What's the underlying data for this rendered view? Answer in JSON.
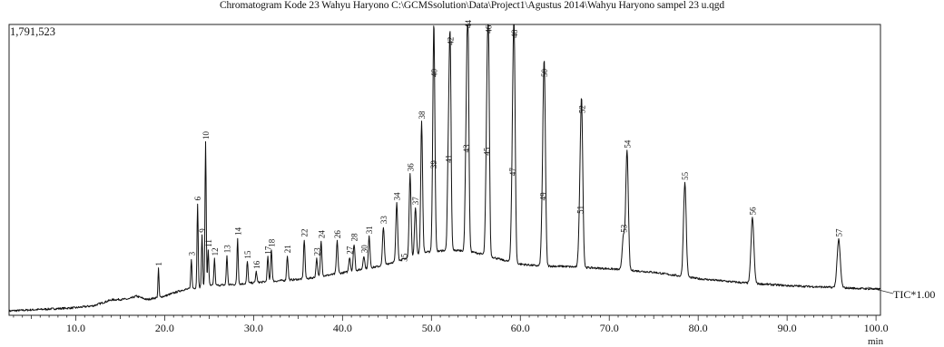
{
  "header": {
    "title": "Chromatogram Kode 23 Wahyu Haryono C:\\GCMSsolution\\Data\\Project1\\Agustus 2014\\Wahyu Haryono sampel 23 u.qgd"
  },
  "chart_data": {
    "type": "line",
    "title": "Chromatogram Kode 23 Wahyu Haryono C:\\GCMSsolution\\Data\\Project1\\Agustus 2014\\Wahyu Haryono sampel 23 u.qgd",
    "y_max_label": "1,791,523",
    "x_unit": "min",
    "trace_label": "TIC*1.00",
    "xlim": [
      2.5,
      100.5
    ],
    "ylim": [
      0,
      1791523
    ],
    "grid": false,
    "x_ticks": [
      {
        "value": 10.0,
        "label": "10.0"
      },
      {
        "value": 20.0,
        "label": "20.0"
      },
      {
        "value": 30.0,
        "label": "30.0"
      },
      {
        "value": 40.0,
        "label": "40.0"
      },
      {
        "value": 50.0,
        "label": "50.0"
      },
      {
        "value": 60.0,
        "label": "60.0"
      },
      {
        "value": 70.0,
        "label": "70.0"
      },
      {
        "value": 80.0,
        "label": "80.0"
      },
      {
        "value": 90.0,
        "label": "90.0"
      },
      {
        "value": 100.0,
        "label": "100.0"
      }
    ],
    "baseline": [
      [
        2.5,
        1.5
      ],
      [
        10,
        2.6
      ],
      [
        12,
        3.3
      ],
      [
        14,
        5.3
      ],
      [
        16,
        5.6
      ],
      [
        16.8,
        6.6
      ],
      [
        18,
        5.4
      ],
      [
        20,
        6.6
      ],
      [
        22,
        8.7
      ],
      [
        25,
        10.2
      ],
      [
        28,
        10.6
      ],
      [
        30,
        11.2
      ],
      [
        33,
        11.9
      ],
      [
        36,
        12.6
      ],
      [
        40,
        14.6
      ],
      [
        44,
        16.8
      ],
      [
        47,
        19.4
      ],
      [
        49,
        21.6
      ],
      [
        52,
        22.4
      ],
      [
        54,
        22.2
      ],
      [
        56,
        20.8
      ],
      [
        58,
        19.0
      ],
      [
        60,
        17.6
      ],
      [
        62,
        17.0
      ],
      [
        65,
        16.8
      ],
      [
        70,
        16.0
      ],
      [
        75,
        14.8
      ],
      [
        80,
        12.6
      ],
      [
        85,
        11.2
      ],
      [
        90,
        10.2
      ],
      [
        95,
        9.6
      ],
      [
        100,
        9.0
      ]
    ],
    "peaks": [
      {
        "label": "1",
        "rt": 19.3,
        "intensity": 16.0
      },
      {
        "label": "3",
        "rt": 23.0,
        "intensity": 19.5
      },
      {
        "label": "6",
        "rt": 23.7,
        "intensity": 38.5
      },
      {
        "label": "9",
        "rt": 24.2,
        "intensity": 27.5
      },
      {
        "label": "10",
        "rt": 24.6,
        "intensity": 59.5
      },
      {
        "label": "11",
        "rt": 24.9,
        "intensity": 22.5
      },
      {
        "label": "12",
        "rt": 25.6,
        "intensity": 19.5
      },
      {
        "label": "13",
        "rt": 27.0,
        "intensity": 20.5
      },
      {
        "label": "14",
        "rt": 28.2,
        "intensity": 26.5
      },
      {
        "label": "15",
        "rt": 29.3,
        "intensity": 18.5
      },
      {
        "label": "16",
        "rt": 30.3,
        "intensity": 15.0
      },
      {
        "label": "17",
        "rt": 31.6,
        "intensity": 20.0
      },
      {
        "label": "18",
        "rt": 32.0,
        "intensity": 22.5
      },
      {
        "label": "21",
        "rt": 33.8,
        "intensity": 20.5
      },
      {
        "label": "22",
        "rt": 35.7,
        "intensity": 26.0
      },
      {
        "label": "23",
        "rt": 37.1,
        "intensity": 19.5
      },
      {
        "label": "24",
        "rt": 37.6,
        "intensity": 25.5
      },
      {
        "label": "26",
        "rt": 39.4,
        "intensity": 25.5
      },
      {
        "label": "27",
        "rt": 40.8,
        "intensity": 20.0
      },
      {
        "label": "28",
        "rt": 41.3,
        "intensity": 24.5
      },
      {
        "label": "30",
        "rt": 42.4,
        "intensity": 20.5
      },
      {
        "label": "31",
        "rt": 43.0,
        "intensity": 27.0
      },
      {
        "label": "33",
        "rt": 44.6,
        "intensity": 30.5
      },
      {
        "label": "34",
        "rt": 46.1,
        "intensity": 38.5
      },
      {
        "label": "35",
        "rt": 46.9,
        "intensity": 17.5
      },
      {
        "label": "36",
        "rt": 47.6,
        "intensity": 48.5
      },
      {
        "label": "37",
        "rt": 48.2,
        "intensity": 37.0
      },
      {
        "label": "38",
        "rt": 48.9,
        "intensity": 66.5
      },
      {
        "label": "39",
        "rt": 50.2,
        "intensity": 49.5
      },
      {
        "label": "40",
        "rt": 50.3,
        "intensity": 81.0
      },
      {
        "label": "41",
        "rt": 51.9,
        "intensity": 51.5
      },
      {
        "label": "42",
        "rt": 52.1,
        "intensity": 92.0
      },
      {
        "label": "43",
        "rt": 53.9,
        "intensity": 55.0
      },
      {
        "label": "44",
        "rt": 54.1,
        "intensity": 100.0
      },
      {
        "label": "45",
        "rt": 56.2,
        "intensity": 54.0
      },
      {
        "label": "46",
        "rt": 56.4,
        "intensity": 96.0
      },
      {
        "label": "47",
        "rt": 59.1,
        "intensity": 47.0
      },
      {
        "label": "48",
        "rt": 59.3,
        "intensity": 94.5
      },
      {
        "label": "49",
        "rt": 62.5,
        "intensity": 38.5
      },
      {
        "label": "50",
        "rt": 62.7,
        "intensity": 81.0
      },
      {
        "label": "51",
        "rt": 66.7,
        "intensity": 34.0
      },
      {
        "label": "52",
        "rt": 66.9,
        "intensity": 68.5
      },
      {
        "label": "53",
        "rt": 71.6,
        "intensity": 27.5
      },
      {
        "label": "54",
        "rt": 72.0,
        "intensity": 56.5
      },
      {
        "label": "55",
        "rt": 78.5,
        "intensity": 45.5
      },
      {
        "label": "56",
        "rt": 86.1,
        "intensity": 33.5
      },
      {
        "label": "57",
        "rt": 95.8,
        "intensity": 26.0
      }
    ]
  }
}
